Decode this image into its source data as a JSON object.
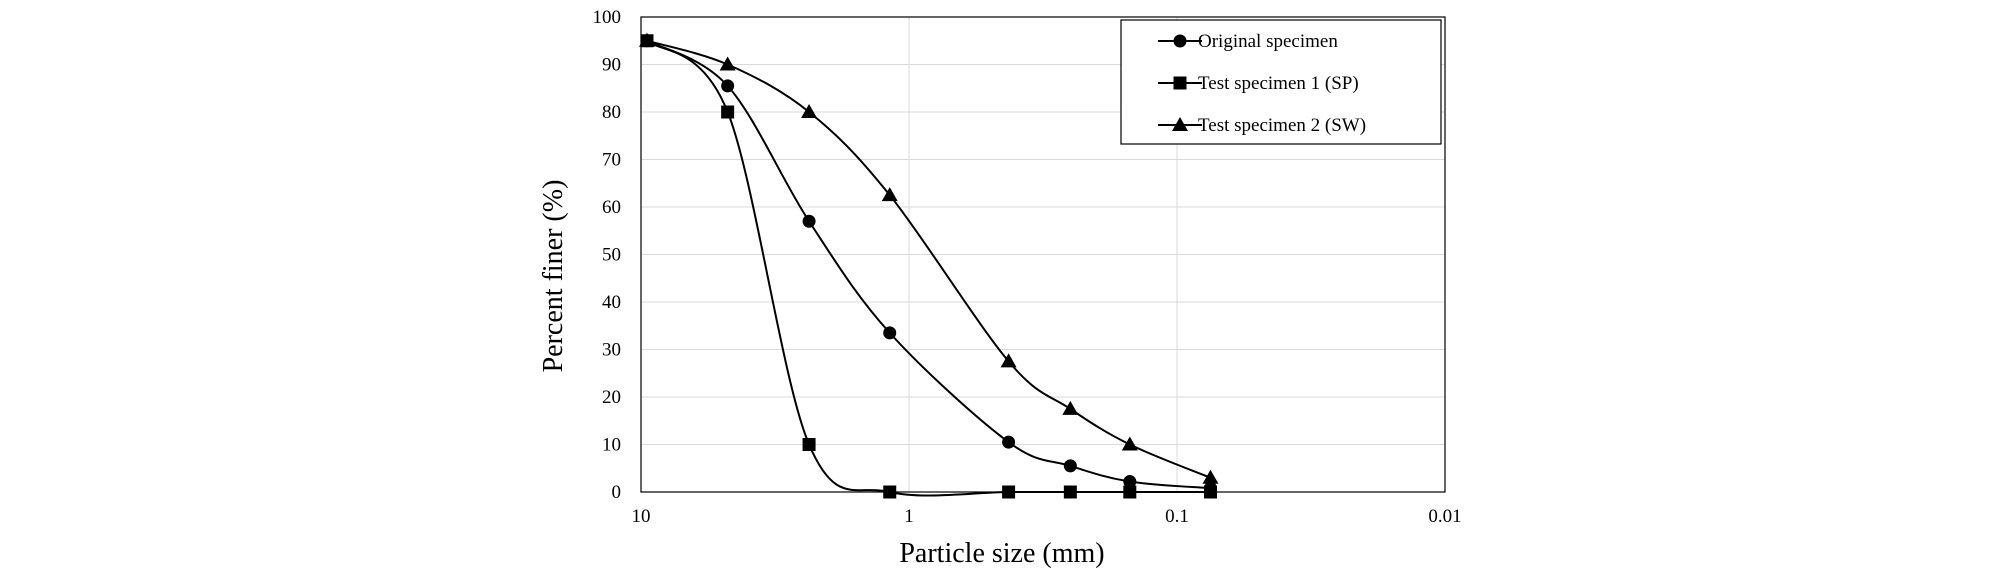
{
  "chart_data": {
    "type": "scatter",
    "title": "",
    "xlabel": "Particle size (mm)",
    "ylabel": "Percent finer (%)",
    "x_scale": "log",
    "x_reversed": true,
    "xlim": [
      10,
      0.01
    ],
    "ylim": [
      0,
      100
    ],
    "x_ticks": [
      10,
      1,
      0.1,
      0.01
    ],
    "x_tick_labels": [
      "10",
      "1",
      "0.1",
      "0.01"
    ],
    "y_ticks": [
      0,
      10,
      20,
      30,
      40,
      50,
      60,
      70,
      80,
      90,
      100
    ],
    "y_tick_labels": [
      "0",
      "10",
      "20",
      "30",
      "40",
      "50",
      "60",
      "70",
      "80",
      "90",
      "100"
    ],
    "grid": true,
    "legend_position": "top-right",
    "series": [
      {
        "name": "Original specimen",
        "marker": "circle",
        "color": "#000000",
        "x": [
          9.5,
          4.75,
          2.36,
          1.18,
          0.425,
          0.25,
          0.15,
          0.075
        ],
        "y": [
          95,
          85.5,
          57,
          33.5,
          10.5,
          5.5,
          2.2,
          0.8
        ]
      },
      {
        "name": "Test specimen 1 (SP)",
        "marker": "square",
        "color": "#000000",
        "x": [
          9.5,
          4.75,
          2.36,
          1.18,
          0.425,
          0.25,
          0.15,
          0.075
        ],
        "y": [
          95,
          80,
          10,
          0,
          0,
          0,
          0,
          0
        ]
      },
      {
        "name": "Test specimen 2 (SW)",
        "marker": "triangle",
        "color": "#000000",
        "x": [
          9.5,
          4.75,
          2.36,
          1.18,
          0.425,
          0.25,
          0.15,
          0.075
        ],
        "y": [
          95,
          90,
          80,
          62.5,
          27.5,
          17.5,
          10,
          3
        ]
      }
    ]
  }
}
